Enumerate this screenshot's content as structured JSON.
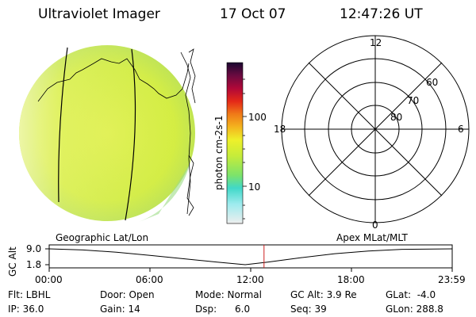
{
  "header": {
    "title": "Ultraviolet Imager",
    "date": "17 Oct 07",
    "time": "12:47:26 UT"
  },
  "colorbar": {
    "label": "photon cm-2s-1",
    "tick_labels": [
      "100",
      "10"
    ]
  },
  "polar": {
    "mlt_labels": [
      "12",
      "6",
      "0",
      "18"
    ],
    "lat_labels": [
      "60",
      "70",
      "80"
    ]
  },
  "orbit": {
    "left_title": "Geographic Lat/Lon",
    "right_title": "Apex MLat/MLT",
    "ylabel": "GC Alt",
    "y_ticks": [
      "9.0",
      "1.8"
    ],
    "x_ticks": [
      "00:00",
      "06:00",
      "12:00",
      "18:00",
      "23:59"
    ]
  },
  "chart_data": {
    "type": "line",
    "title": "",
    "xlabel": "",
    "ylabel": "GC Alt",
    "ylim": [
      1.8,
      9.0
    ],
    "x_ticks": [
      "00:00",
      "06:00",
      "12:00",
      "18:00",
      "23:59"
    ],
    "series": [
      {
        "x": [
          "00:00",
          "02:00",
          "04:00",
          "06:00",
          "08:00",
          "10:00",
          "11:40",
          "13:00",
          "15:00",
          "17:00",
          "19:00",
          "21:00",
          "23:59"
        ],
        "values": [
          9.0,
          8.5,
          7.5,
          6.0,
          4.5,
          3.0,
          1.8,
          3.0,
          5.0,
          6.8,
          8.0,
          8.8,
          9.0
        ]
      }
    ],
    "current_time": "12:47"
  },
  "status": {
    "flt": "Flt: LBHL",
    "ip": "IP: 36.0",
    "door": "Door: Open",
    "gain": "Gain: 14",
    "mode": "Mode: Normal",
    "dsp": "Dsp:      6.0",
    "gcalt": "GC Alt: 3.9 Re",
    "seq": "Seq: 39",
    "glat": "GLat:  -4.0",
    "glon": "GLon: 288.8"
  },
  "colors": {
    "disk": "#d8ee3a",
    "orbit_marker": "#cc2020"
  }
}
